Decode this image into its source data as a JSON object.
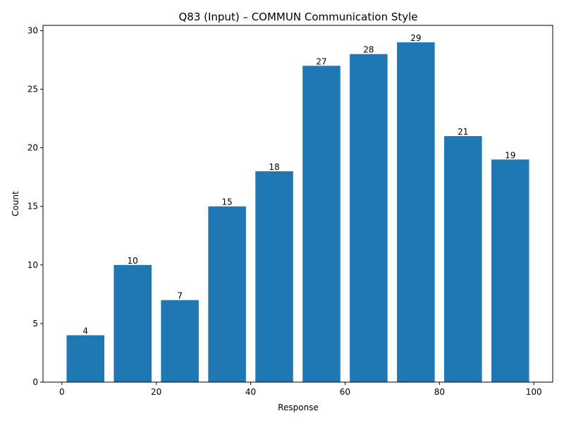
{
  "chart_data": {
    "type": "bar",
    "title": "Q83 (Input) – COMMUN Communication Style",
    "xlabel": "Response",
    "ylabel": "Count",
    "x": [
      5,
      15,
      25,
      35,
      45,
      55,
      65,
      75,
      85,
      95
    ],
    "values": [
      4,
      10,
      7,
      15,
      18,
      27,
      28,
      29,
      21,
      19
    ],
    "bar_width": 8,
    "xlim": [
      -4,
      104
    ],
    "ylim": [
      0,
      30.45
    ],
    "xticks": [
      0,
      20,
      40,
      60,
      80,
      100
    ],
    "yticks": [
      0,
      5,
      10,
      15,
      20,
      25,
      30
    ],
    "bar_color": "#1f77b4",
    "grid": false,
    "legend": "none"
  }
}
